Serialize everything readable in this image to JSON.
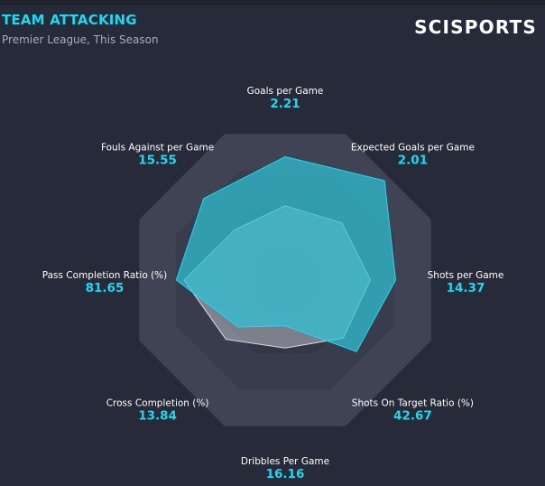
{
  "header": {
    "title": "TEAM ATTACKING",
    "subtitle": "Premier League, This Season",
    "logo": "SCISPORTS"
  },
  "colors": {
    "background": "#272a38",
    "accent": "#1fd8f0",
    "team_fill": "#2ec3d6",
    "average_fill": "#b9bcc7"
  },
  "chart_data": {
    "type": "radar",
    "title": "TEAM ATTACKING",
    "subtitle": "Premier League, This Season",
    "axes": [
      {
        "label": "Goals per Game",
        "value": "2.21"
      },
      {
        "label": "Expected Goals per Game",
        "value": "2.01"
      },
      {
        "label": "Shots per Game",
        "value": "14.37"
      },
      {
        "label": "Shots On Target Ratio (%)",
        "value": "42.67"
      },
      {
        "label": "Dribbles Per Game",
        "value": "16.16"
      },
      {
        "label": "Cross Completion (%)",
        "value": "13.84"
      },
      {
        "label": "Pass Completion Ratio (%)",
        "value": "81.65"
      },
      {
        "label": "Fouls Against per Game",
        "value": "15.55"
      }
    ],
    "rings": 4,
    "scale": [
      0,
      1
    ],
    "series": [
      {
        "role": "team",
        "values": [
          0.78,
          0.89,
          0.7,
          0.64,
          0.29,
          0.42,
          0.69,
          0.73
        ]
      },
      {
        "role": "league-average",
        "values": [
          0.47,
          0.51,
          0.54,
          0.52,
          0.43,
          0.53,
          0.64,
          0.45
        ]
      }
    ]
  }
}
